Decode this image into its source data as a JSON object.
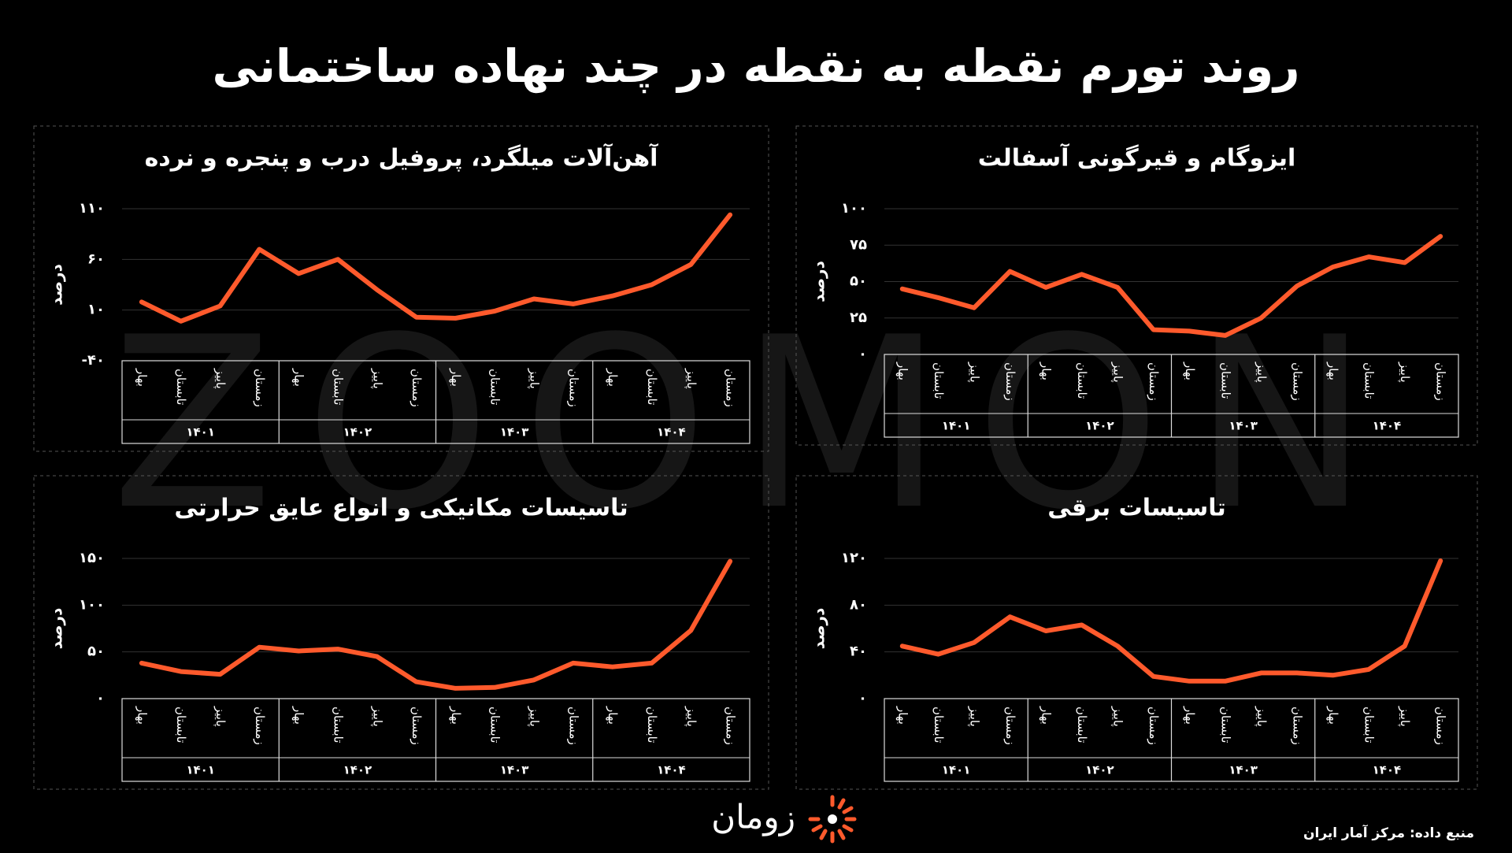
{
  "title": "روند تورم نقطه به نقطه در چند نهاده ساختمانی",
  "watermark": "ZOOMON",
  "logo": "زومان",
  "source": "منبع داده: مرکز آمار ایران",
  "chart_data": [
    {
      "type": "line",
      "title": "ایزوگام و قیرگونی آسفالت",
      "y_label": "درصد",
      "categories": [
        "بهار",
        "تابستان",
        "پاییز",
        "زمستان",
        "بهار",
        "تابستان",
        "پاییز",
        "زمستان",
        "بهار",
        "تابستان",
        "پاییز",
        "زمستان",
        "بهار",
        "تابستان",
        "پاییز",
        "زمستان"
      ],
      "groups": [
        "۱۴۰۱",
        "۱۴۰۲",
        "۱۴۰۳",
        "۱۴۰۴"
      ],
      "values": [
        45,
        39,
        32,
        57,
        46,
        55,
        46,
        17,
        16,
        13,
        25,
        47,
        60,
        67,
        63,
        81
      ],
      "color": "#ff5a2c",
      "ylim": [
        0,
        100
      ],
      "yticks": [
        {
          "value": 0,
          "label": "۰"
        },
        {
          "value": 25,
          "label": "۲۵"
        },
        {
          "value": 50,
          "label": "۵۰"
        },
        {
          "value": 75,
          "label": "۷۵"
        },
        {
          "value": 100,
          "label": "۱۰۰"
        }
      ],
      "grid": true
    },
    {
      "type": "line",
      "title": "آهن‌آلات میلگرد، پروفیل درب و پنجره و نرده",
      "y_label": "درصد",
      "categories": [
        "بهار",
        "تابستان",
        "پاییز",
        "زمستان",
        "بهار",
        "تابستان",
        "پاییز",
        "زمستان",
        "بهار",
        "تابستان",
        "پاییز",
        "زمستان",
        "بهار",
        "تابستان",
        "پاییز",
        "زمستان"
      ],
      "groups": [
        "۱۴۰۱",
        "۱۴۰۲",
        "۱۴۰۳",
        "۱۴۰۴"
      ],
      "values": [
        18,
        -1,
        14,
        70,
        46,
        60,
        30,
        3,
        2,
        9,
        21,
        16,
        24,
        35,
        55,
        104
      ],
      "color": "#ff5a2c",
      "ylim": [
        -40,
        110
      ],
      "yticks": [
        {
          "value": -40,
          "label": "-۴۰"
        },
        {
          "value": 10,
          "label": "۱۰"
        },
        {
          "value": 60,
          "label": "۶۰"
        },
        {
          "value": 110,
          "label": "۱۱۰"
        }
      ],
      "grid": true
    },
    {
      "type": "line",
      "title": "تاسیسات برقی",
      "y_label": "درصد",
      "categories": [
        "بهار",
        "تابستان",
        "پاییز",
        "زمستان",
        "بهار",
        "تابستان",
        "پاییز",
        "زمستان",
        "بهار",
        "تابستان",
        "پاییز",
        "زمستان",
        "بهار",
        "تابستان",
        "پاییز",
        "زمستان"
      ],
      "groups": [
        "۱۴۰۱",
        "۱۴۰۲",
        "۱۴۰۳",
        "۱۴۰۴"
      ],
      "values": [
        45,
        38,
        48,
        70,
        58,
        63,
        45,
        19,
        15,
        15,
        22,
        22,
        20,
        25,
        45,
        118
      ],
      "color": "#ff5a2c",
      "ylim": [
        0,
        120
      ],
      "yticks": [
        {
          "value": 0,
          "label": "۰"
        },
        {
          "value": 40,
          "label": "۴۰"
        },
        {
          "value": 80,
          "label": "۸۰"
        },
        {
          "value": 120,
          "label": "۱۲۰"
        }
      ],
      "grid": true
    },
    {
      "type": "line",
      "title": "تاسیسات مکانیکی و انواع عایق حرارتی",
      "y_label": "درصد",
      "categories": [
        "بهار",
        "تابستان",
        "پاییز",
        "زمستان",
        "بهار",
        "تابستان",
        "پاییز",
        "زمستان",
        "بهار",
        "تابستان",
        "پاییز",
        "زمستان",
        "بهار",
        "تابستان",
        "پاییز",
        "زمستان"
      ],
      "groups": [
        "۱۴۰۱",
        "۱۴۰۲",
        "۱۴۰۳",
        "۱۴۰۴"
      ],
      "values": [
        38,
        29,
        26,
        55,
        51,
        53,
        45,
        18,
        11,
        12,
        20,
        38,
        34,
        38,
        73,
        147
      ],
      "color": "#ff5a2c",
      "ylim": [
        0,
        150
      ],
      "yticks": [
        {
          "value": 0,
          "label": "۰"
        },
        {
          "value": 50,
          "label": "۵۰"
        },
        {
          "value": 100,
          "label": "۱۰۰"
        },
        {
          "value": 150,
          "label": "۱۵۰"
        }
      ],
      "grid": true
    }
  ]
}
